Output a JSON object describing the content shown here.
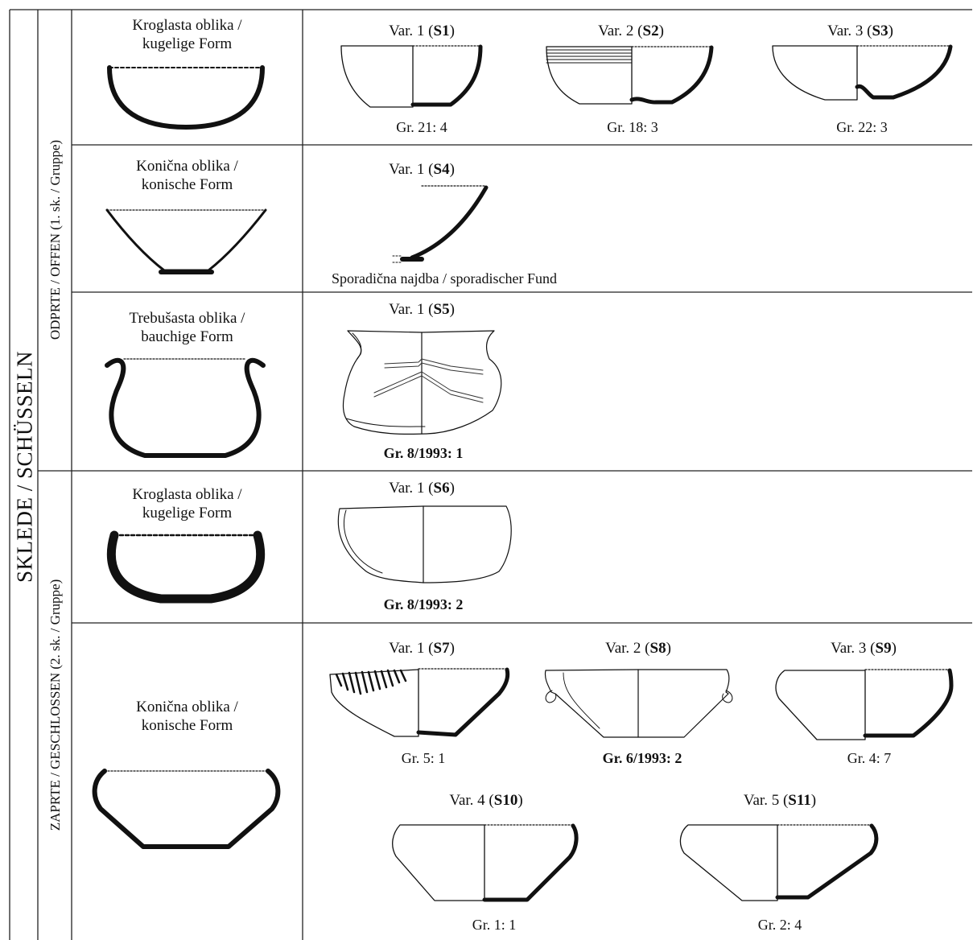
{
  "main_title": "SKLEDE / SCHÜSSELN",
  "groups": {
    "open": "ODPRTE / OFFEN (1. sk. / Gruppe)",
    "closed": "ZAPRTE / GESCHLOSSEN (2. sk. / Gruppe)"
  },
  "forms": {
    "open_spherical": [
      "Kroglasta oblika /",
      "kugelige Form"
    ],
    "open_conical": [
      "Konična oblika /",
      "konische Form"
    ],
    "open_bellied": [
      "Trebušasta oblika /",
      "bauchige Form"
    ],
    "closed_spherical": [
      "Kroglasta oblika /",
      "kugelige Form"
    ],
    "closed_conical": [
      "Konična oblika /",
      "konische Form"
    ]
  },
  "variants": [
    {
      "prefix": "Var. 1 (",
      "code": "S1",
      "suffix": ")",
      "caption": "Gr. 21: 4",
      "caption_bold": false
    },
    {
      "prefix": "Var. 2 (",
      "code": "S2",
      "suffix": ")",
      "caption": "Gr. 18: 3",
      "caption_bold": false
    },
    {
      "prefix": "Var. 3 (",
      "code": "S3",
      "suffix": ")",
      "caption": "Gr. 22: 3",
      "caption_bold": false
    },
    {
      "prefix": "Var. 1 (",
      "code": "S4",
      "suffix": ")",
      "caption": "Sporadična najdba / sporadischer Fund",
      "caption_bold": false
    },
    {
      "prefix": "Var. 1 (",
      "code": "S5",
      "suffix": ")",
      "caption": "Gr. 8/1993: 1",
      "caption_bold": true
    },
    {
      "prefix": "Var. 1 (",
      "code": "S6",
      "suffix": ")",
      "caption": "Gr. 8/1993: 2",
      "caption_bold": true
    },
    {
      "prefix": "Var. 1 (",
      "code": "S7",
      "suffix": ")",
      "caption": "Gr. 5: 1",
      "caption_bold": false
    },
    {
      "prefix": "Var. 2 (",
      "code": "S8",
      "suffix": ")",
      "caption": "Gr. 6/1993: 2",
      "caption_bold": true
    },
    {
      "prefix": "Var. 3 (",
      "code": "S9",
      "suffix": ")",
      "caption": "Gr. 4: 7",
      "caption_bold": false
    },
    {
      "prefix": "Var. 4 (",
      "code": "S10",
      "suffix": ")",
      "caption": "Gr. 1: 1",
      "caption_bold": false
    },
    {
      "prefix": "Var. 5 (",
      "code": "S11",
      "suffix": ")",
      "caption": "Gr. 2: 4",
      "caption_bold": false
    }
  ]
}
